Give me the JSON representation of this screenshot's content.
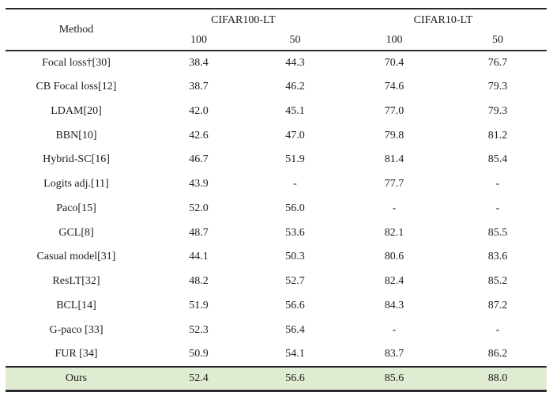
{
  "table": {
    "header": {
      "method_label": "Method",
      "group1": "CIFAR100-LT",
      "group2": "CIFAR10-LT",
      "subcols": [
        "100",
        "50",
        "100",
        "50"
      ]
    },
    "rows": [
      {
        "method": "Focal loss†[30]",
        "values": [
          "38.4",
          "44.3",
          "70.4",
          "76.7"
        ]
      },
      {
        "method": "CB Focal loss[12]",
        "values": [
          "38.7",
          "46.2",
          "74.6",
          "79.3"
        ]
      },
      {
        "method": "LDAM[20]",
        "values": [
          "42.0",
          "45.1",
          "77.0",
          "79.3"
        ]
      },
      {
        "method": "BBN[10]",
        "values": [
          "42.6",
          "47.0",
          "79.8",
          "81.2"
        ]
      },
      {
        "method": "Hybrid-SC[16]",
        "values": [
          "46.7",
          "51.9",
          "81.4",
          "85.4"
        ]
      },
      {
        "method": "Logits adj.[11]",
        "values": [
          "43.9",
          "-",
          "77.7",
          "-"
        ]
      },
      {
        "method": "Paco[15]",
        "values": [
          "52.0",
          "56.0",
          "-",
          "-"
        ]
      },
      {
        "method": "GCL[8]",
        "values": [
          "48.7",
          "53.6",
          "82.1",
          "85.5"
        ]
      },
      {
        "method": "Casual model[31]",
        "values": [
          "44.1",
          "50.3",
          "80.6",
          "83.6"
        ]
      },
      {
        "method": "ResLT[32]",
        "values": [
          "48.2",
          "52.7",
          "82.4",
          "85.2"
        ]
      },
      {
        "method": "BCL[14]",
        "values": [
          "51.9",
          "56.6",
          "84.3",
          "87.2"
        ]
      },
      {
        "method": "G-paco [33]",
        "values": [
          "52.3",
          "56.4",
          "-",
          "-"
        ]
      },
      {
        "method": "FUR [34]",
        "values": [
          "50.9",
          "54.1",
          "83.7",
          "86.2"
        ]
      }
    ],
    "highlight": {
      "method": "Ours",
      "values": [
        "52.4",
        "56.6",
        "85.6",
        "88.0"
      ]
    },
    "colors": {
      "highlight_bg": "#dfecd2",
      "rule": "#2b2b2b",
      "text": "#1c1c1c"
    }
  }
}
